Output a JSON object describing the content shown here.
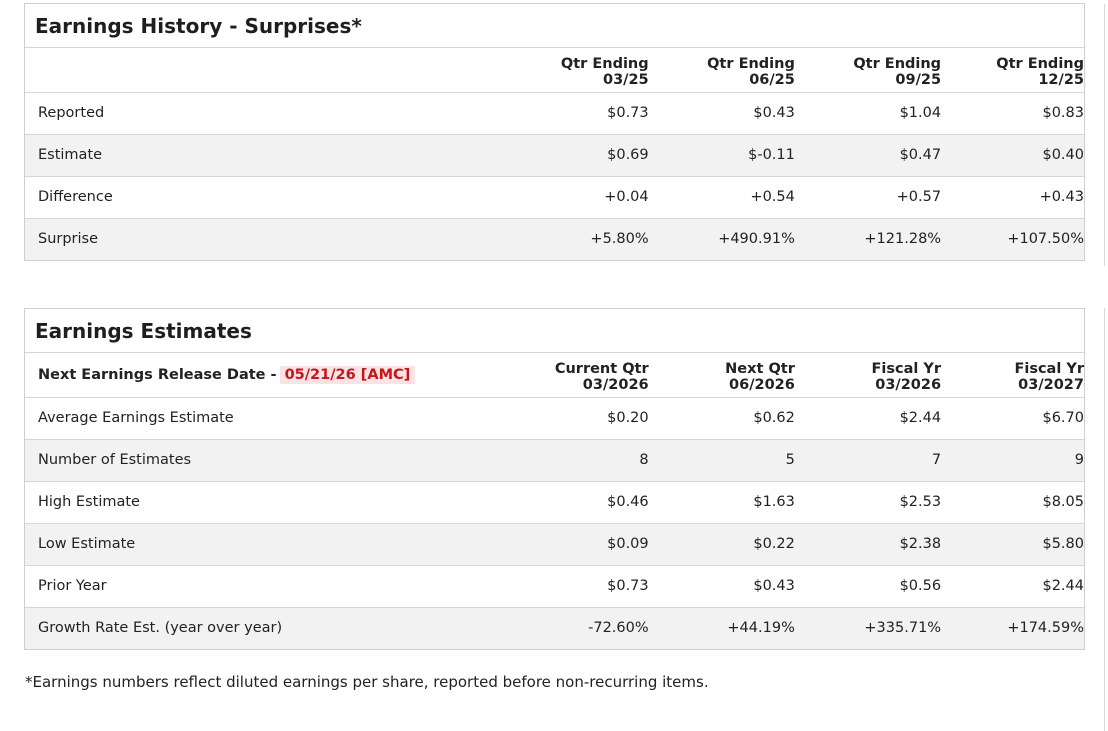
{
  "history": {
    "title": "Earnings History - Surprises*",
    "columns": [
      {
        "line1": "Qtr Ending",
        "line2": "03/25"
      },
      {
        "line1": "Qtr Ending",
        "line2": "06/25"
      },
      {
        "line1": "Qtr Ending",
        "line2": "09/25"
      },
      {
        "line1": "Qtr Ending",
        "line2": "12/25"
      }
    ],
    "rows": [
      {
        "label": "Reported",
        "values": [
          "$0.73",
          "$0.43",
          "$1.04",
          "$0.83"
        ]
      },
      {
        "label": "Estimate",
        "values": [
          "$0.69",
          "$-0.11",
          "$0.47",
          "$0.40"
        ]
      },
      {
        "label": "Difference",
        "values": [
          "+0.04",
          "+0.54",
          "+0.57",
          "+0.43"
        ]
      },
      {
        "label": "Surprise",
        "values": [
          "+5.80%",
          "+490.91%",
          "+121.28%",
          "+107.50%"
        ]
      }
    ]
  },
  "estimates": {
    "title": "Earnings Estimates",
    "next_release_label": "Next Earnings Release Date -",
    "next_release_date": "05/21/26 [AMC]",
    "columns": [
      {
        "line1": "Current Qtr",
        "line2": "03/2026"
      },
      {
        "line1": "Next Qtr",
        "line2": "06/2026"
      },
      {
        "line1": "Fiscal Yr",
        "line2": "03/2026"
      },
      {
        "line1": "Fiscal Yr",
        "line2": "03/2027"
      }
    ],
    "rows": [
      {
        "label": "Average Earnings Estimate",
        "values": [
          "$0.20",
          "$0.62",
          "$2.44",
          "$6.70"
        ]
      },
      {
        "label": "Number of Estimates",
        "values": [
          "8",
          "5",
          "7",
          "9"
        ]
      },
      {
        "label": "High Estimate",
        "values": [
          "$0.46",
          "$1.63",
          "$2.53",
          "$8.05"
        ]
      },
      {
        "label": "Low Estimate",
        "values": [
          "$0.09",
          "$0.22",
          "$2.38",
          "$5.80"
        ]
      },
      {
        "label": "Prior Year",
        "values": [
          "$0.73",
          "$0.43",
          "$0.56",
          "$2.44"
        ]
      },
      {
        "label": "Growth Rate Est. (year over year)",
        "values": [
          "-72.60%",
          "+44.19%",
          "+335.71%",
          "+174.59%"
        ]
      }
    ]
  },
  "footnote": "*Earnings numbers reflect diluted earnings per share, reported before non-recurring items.",
  "colors": {
    "positive": "#2b8a3e",
    "negative": "#d9232d",
    "badge_bg": "#fbe3e3",
    "badge_text": "#c4161c",
    "alt_row": "#f2f2f2"
  }
}
